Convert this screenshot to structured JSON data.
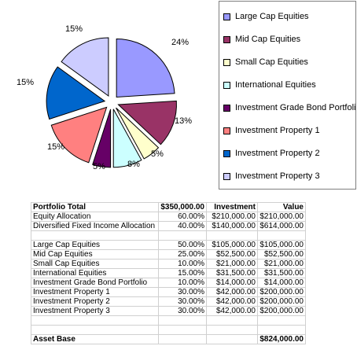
{
  "chart_data": {
    "type": "pie",
    "slices": [
      {
        "label": "Large Cap Equities",
        "percent": 24,
        "label_text": "24%",
        "color": "#9999FF"
      },
      {
        "label": "Mid Cap Equities",
        "percent": 13,
        "label_text": "13%",
        "color": "#993366"
      },
      {
        "label": "Small Cap Equities",
        "percent": 5,
        "label_text": "5%",
        "color": "#FFFFCC"
      },
      {
        "label": "International Equities",
        "percent": 8,
        "label_text": "8%",
        "color": "#CCFFFF"
      },
      {
        "label": "Investment Grade Bond Portfolio",
        "percent": 5,
        "label_text": "5%",
        "color": "#660066"
      },
      {
        "label": "Investment Property 1",
        "percent": 15,
        "label_text": "15%",
        "color": "#FF8080"
      },
      {
        "label": "Investment Property 2",
        "percent": 15,
        "label_text": "15%",
        "color": "#0066CC"
      },
      {
        "label": "Investment Property 3",
        "percent": 15,
        "label_text": "15%",
        "color": "#CCCCFF"
      }
    ],
    "legend_placement": "right"
  },
  "table": {
    "header": [
      "Portfolio Total",
      "$350,000.00",
      "Investment",
      "Value"
    ],
    "rows": [
      [
        "Equity Allocation",
        "60.00%",
        "$210,000.00",
        "$210,000.00"
      ],
      [
        "Diversified Fixed Income Allocation",
        "40.00%",
        "$140,000.00",
        "$614,000.00"
      ],
      [
        "",
        "",
        "",
        ""
      ],
      [
        "Large Cap Equities",
        "50.00%",
        "$105,000.00",
        "$105,000.00"
      ],
      [
        "Mid Cap Equities",
        "25.00%",
        "$52,500.00",
        "$52,500.00"
      ],
      [
        "Small Cap Equities",
        "10.00%",
        "$21,000.00",
        "$21,000.00"
      ],
      [
        "International Equities",
        "15.00%",
        "$31,500.00",
        "$31,500.00"
      ],
      [
        "Investment Grade Bond Portfolio",
        "10.00%",
        "$14,000.00",
        "$14,000.00"
      ],
      [
        "Investment Property 1",
        "30.00%",
        "$42,000.00",
        "$200,000.00"
      ],
      [
        "Investment Property 2",
        "30.00%",
        "$42,000.00",
        "$200,000.00"
      ],
      [
        "Investment Property 3",
        "30.00%",
        "$42,000.00",
        "$200,000.00"
      ],
      [
        "",
        "",
        "",
        ""
      ],
      [
        "",
        "",
        "",
        ""
      ]
    ],
    "footer": [
      "Asset Base",
      "",
      "",
      "$824,000.00"
    ]
  }
}
